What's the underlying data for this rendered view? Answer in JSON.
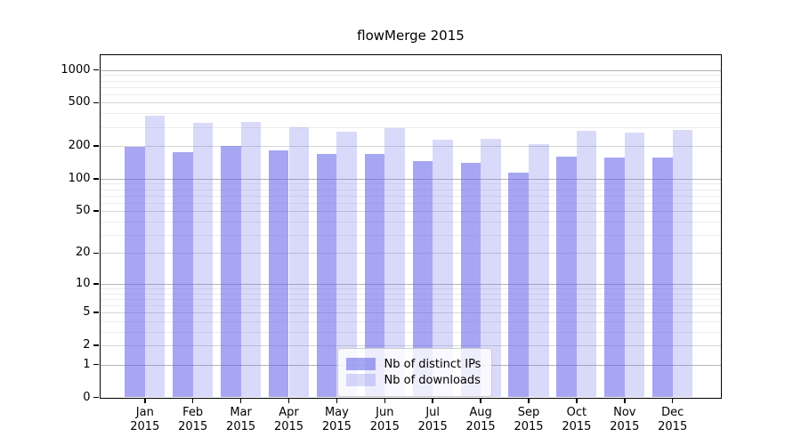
{
  "figure": {
    "title": "flowMerge 2015"
  },
  "chart_data": {
    "type": "bar",
    "title": "flowMerge 2015",
    "y_scale": "log10(1+y)",
    "ylim": [
      0,
      1380
    ],
    "grid": "horizontal major+minor, log-decade pattern",
    "legend_position": "bottom-center-inside",
    "categories": [
      "Jan",
      "Feb",
      "Mar",
      "Apr",
      "May",
      "Jun",
      "Jul",
      "Aug",
      "Sep",
      "Oct",
      "Nov",
      "Dec"
    ],
    "x_year_label": "2015",
    "y_ticks": [
      1000,
      500,
      200,
      100,
      50,
      20,
      10,
      5,
      2,
      1,
      0
    ],
    "series": [
      {
        "name": "Nb of distinct IPs",
        "color": "rgba(102,102,232,0.58)",
        "values": [
          195,
          176,
          199,
          181,
          170,
          170,
          146,
          140,
          114,
          160,
          156,
          157
        ]
      },
      {
        "name": "Nb of downloads",
        "color": "rgba(102,102,232,0.25)",
        "values": [
          378,
          325,
          336,
          296,
          271,
          291,
          228,
          234,
          207,
          278,
          265,
          280
        ]
      }
    ],
    "colors": {
      "grid_major": "#b4b4b4",
      "grid_labeled": "#d6d6d6",
      "grid_minor": "#ececec",
      "axis": "#000000"
    }
  }
}
